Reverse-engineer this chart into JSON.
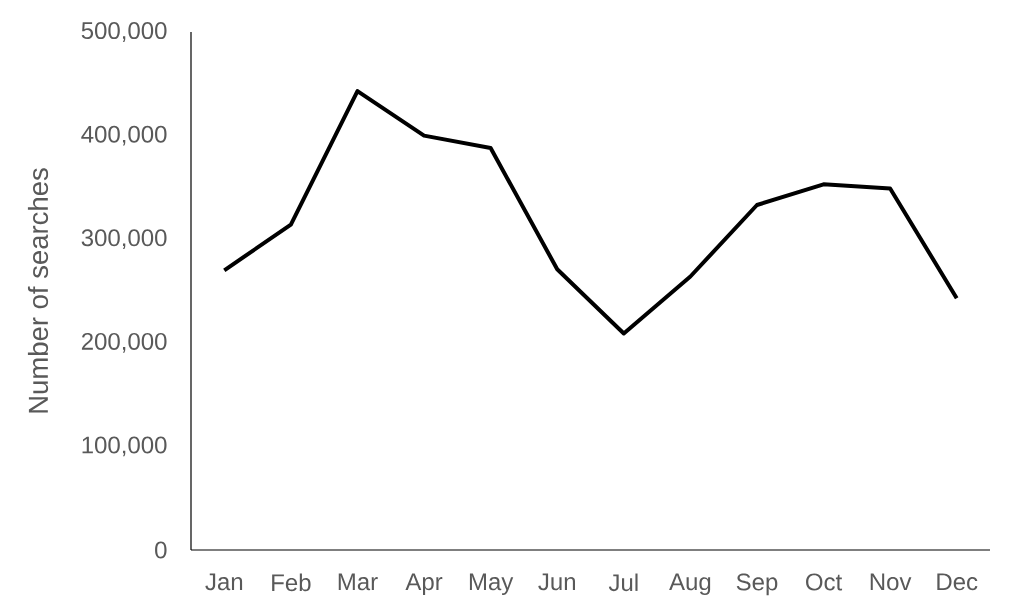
{
  "chart_data": {
    "type": "line",
    "ylabel": "Number of searches",
    "categories": [
      "Jan",
      "Feb",
      "Mar",
      "Apr",
      "May",
      "Jun",
      "Jul",
      "Aug",
      "Sep",
      "Oct",
      "Nov",
      "Dec"
    ],
    "series": [
      {
        "color": "#000000",
        "values": [
          270000,
          314000,
          443000,
          400000,
          388000,
          271000,
          209000,
          264000,
          333000,
          353000,
          349000,
          243000
        ]
      }
    ],
    "ylim": [
      0,
      500000
    ],
    "yticks": [
      0,
      {
        "value": 100000,
        "label": "100,000"
      },
      {
        "value": 200000,
        "label": "200,000"
      },
      {
        "value": 300000,
        "label": "300,000"
      },
      {
        "value": 400000,
        "label": "400,000"
      },
      {
        "value": 500000,
        "label": "500,000"
      }
    ],
    "grid": false,
    "legend": false,
    "marker": "none",
    "line_style": "solid"
  }
}
